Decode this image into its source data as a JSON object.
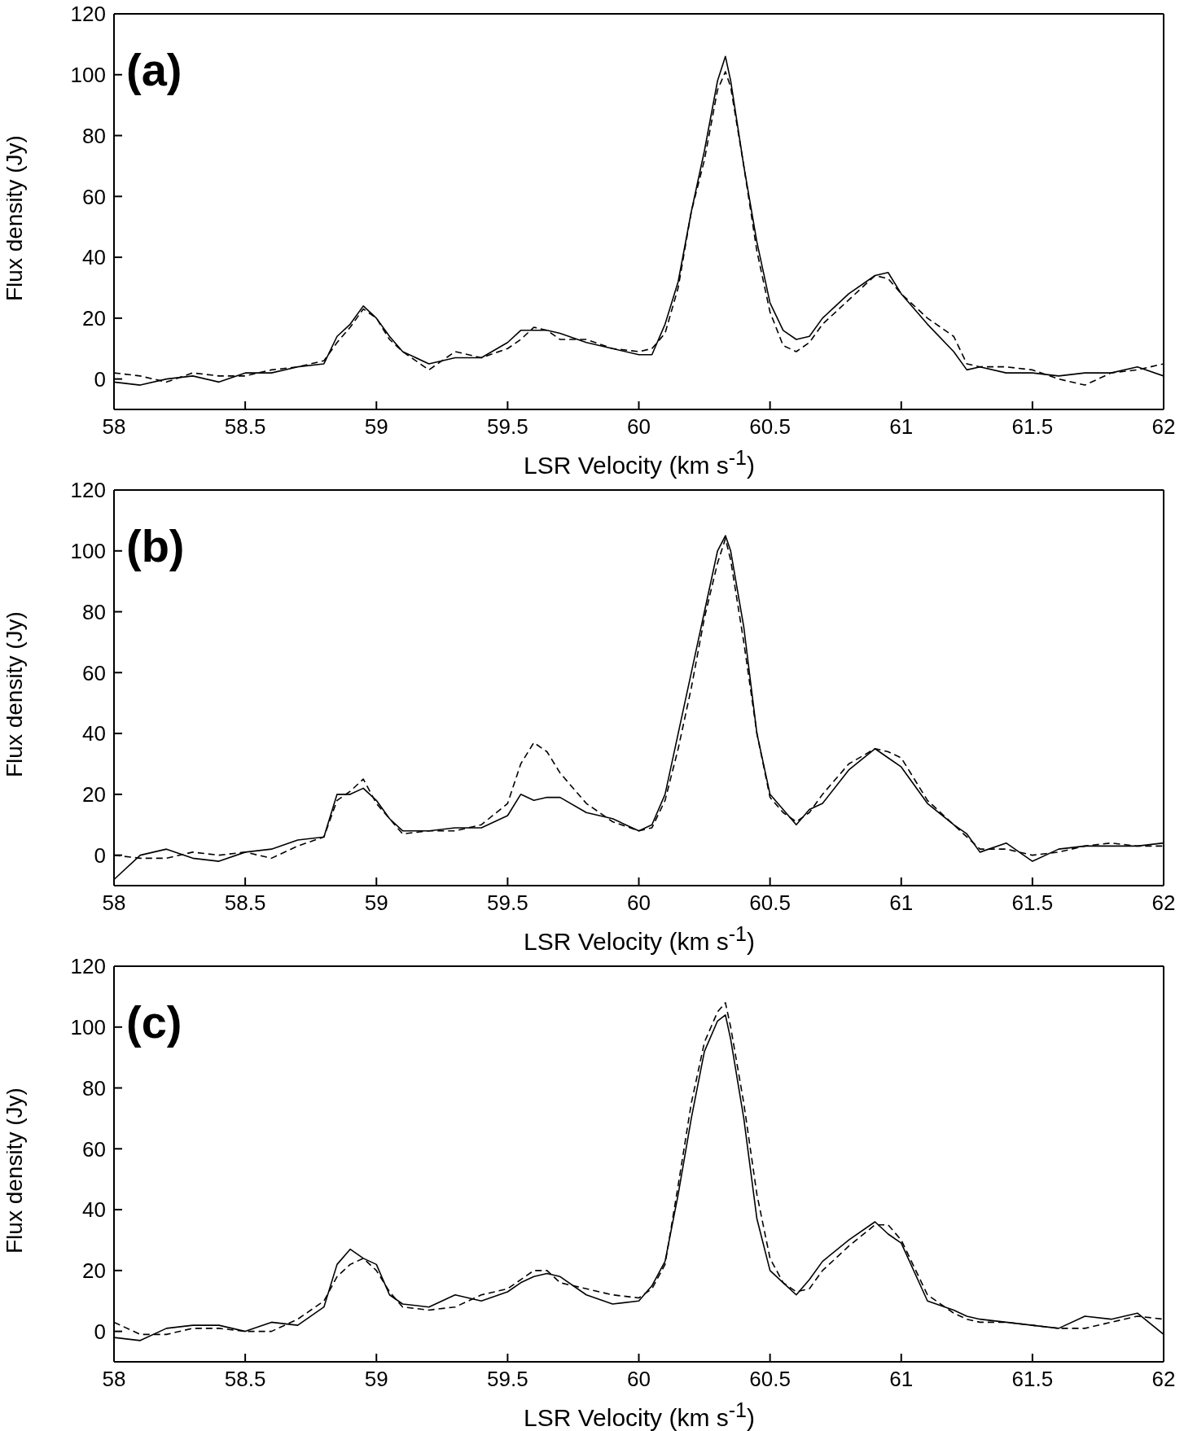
{
  "chart_data": [
    {
      "type": "line",
      "annotations": [
        "(a)"
      ],
      "xlabel": "LSR Velocity (km s$^{-1}$)",
      "ylabel": "Flux density (Jy)",
      "xlim": [
        58,
        62
      ],
      "xticks": [
        58,
        58.5,
        59,
        59.5,
        60,
        60.5,
        61,
        61.5,
        62
      ],
      "ylim": [
        -10,
        120
      ],
      "yticks": [
        0,
        20,
        40,
        60,
        80,
        100,
        120
      ],
      "x": [
        58,
        58.1,
        58.2,
        58.3,
        58.4,
        58.5,
        58.6,
        58.7,
        58.8,
        58.85,
        58.9,
        58.95,
        59,
        59.05,
        59.1,
        59.2,
        59.3,
        59.4,
        59.5,
        59.55,
        59.6,
        59.65,
        59.7,
        59.8,
        59.9,
        60,
        60.05,
        60.1,
        60.15,
        60.2,
        60.25,
        60.3,
        60.33,
        60.35,
        60.4,
        60.45,
        60.5,
        60.55,
        60.6,
        60.65,
        60.7,
        60.8,
        60.9,
        60.95,
        61,
        61.1,
        61.2,
        61.25,
        61.3,
        61.4,
        61.5,
        61.6,
        61.7,
        61.8,
        61.9,
        62
      ],
      "series": [
        {
          "color": "#000000",
          "line_style": "solid",
          "values": [
            -1,
            -2,
            0,
            1,
            -1,
            2,
            2,
            4,
            5,
            14,
            18,
            24,
            20,
            14,
            9,
            5,
            7,
            7,
            12,
            16,
            16,
            16,
            15,
            12,
            10,
            8,
            8,
            18,
            32,
            55,
            75,
            98,
            106,
            98,
            70,
            45,
            25,
            16,
            13,
            14,
            20,
            28,
            34,
            35,
            28,
            18,
            9,
            3,
            4,
            2,
            2,
            1,
            2,
            2,
            4,
            1
          ]
        },
        {
          "color": "#000000",
          "line_style": "dashed",
          "values": [
            2,
            1,
            -1,
            2,
            1,
            1,
            3,
            4,
            6,
            12,
            17,
            23,
            20,
            13,
            9,
            3,
            9,
            7,
            10,
            13,
            17,
            16,
            13,
            13,
            10,
            9,
            10,
            15,
            30,
            55,
            72,
            95,
            101,
            96,
            70,
            42,
            22,
            11,
            9,
            12,
            18,
            26,
            34,
            33,
            28,
            20,
            14,
            5,
            4,
            4,
            3,
            0,
            -2,
            2,
            3,
            5
          ]
        }
      ]
    },
    {
      "type": "line",
      "annotations": [
        "(b)"
      ],
      "xlabel": "LSR Velocity (km s$^{-1}$)",
      "ylabel": "Flux density (Jy)",
      "xlim": [
        58,
        62
      ],
      "xticks": [
        58,
        58.5,
        59,
        59.5,
        60,
        60.5,
        61,
        61.5,
        62
      ],
      "ylim": [
        -10,
        120
      ],
      "yticks": [
        0,
        20,
        40,
        60,
        80,
        100,
        120
      ],
      "x": [
        58,
        58.1,
        58.2,
        58.3,
        58.4,
        58.5,
        58.6,
        58.7,
        58.8,
        58.85,
        58.9,
        58.95,
        59,
        59.05,
        59.1,
        59.2,
        59.3,
        59.4,
        59.5,
        59.55,
        59.6,
        59.65,
        59.7,
        59.8,
        59.9,
        60,
        60.05,
        60.1,
        60.15,
        60.2,
        60.25,
        60.3,
        60.33,
        60.35,
        60.4,
        60.45,
        60.5,
        60.55,
        60.6,
        60.65,
        60.7,
        60.8,
        60.9,
        60.95,
        61,
        61.1,
        61.2,
        61.25,
        61.3,
        61.4,
        61.5,
        61.6,
        61.7,
        61.8,
        61.9,
        62
      ],
      "series": [
        {
          "color": "#000000",
          "line_style": "solid",
          "values": [
            -8,
            0,
            2,
            -1,
            -2,
            1,
            2,
            5,
            6,
            20,
            20,
            22,
            18,
            12,
            8,
            8,
            9,
            9,
            13,
            20,
            18,
            19,
            19,
            14,
            12,
            8,
            10,
            20,
            40,
            60,
            80,
            100,
            105,
            100,
            75,
            40,
            20,
            15,
            10,
            15,
            17,
            28,
            35,
            32,
            29,
            17,
            10,
            7,
            1,
            4,
            -2,
            2,
            3,
            3,
            3,
            4
          ]
        },
        {
          "color": "#000000",
          "line_style": "dashed",
          "values": [
            0,
            -1,
            -1,
            1,
            0,
            1,
            -1,
            3,
            6,
            18,
            21,
            25,
            17,
            12,
            7,
            8,
            8,
            10,
            17,
            30,
            37,
            34,
            27,
            17,
            11,
            8,
            9,
            18,
            35,
            55,
            78,
            96,
            104,
            97,
            70,
            40,
            19,
            14,
            11,
            14,
            20,
            30,
            35,
            34,
            32,
            18,
            10,
            6,
            2,
            2,
            0,
            1,
            3,
            4,
            3,
            3
          ]
        }
      ]
    },
    {
      "type": "line",
      "annotations": [
        "(c)"
      ],
      "xlabel": "LSR Velocity (km s$^{-1}$)",
      "ylabel": "Flux density (Jy)",
      "xlim": [
        58,
        62
      ],
      "xticks": [
        58,
        58.5,
        59,
        59.5,
        60,
        60.5,
        61,
        61.5,
        62
      ],
      "ylim": [
        -10,
        120
      ],
      "yticks": [
        0,
        20,
        40,
        60,
        80,
        100,
        120
      ],
      "x": [
        58,
        58.1,
        58.2,
        58.3,
        58.4,
        58.5,
        58.6,
        58.7,
        58.8,
        58.85,
        58.9,
        58.95,
        59,
        59.05,
        59.1,
        59.2,
        59.3,
        59.4,
        59.5,
        59.55,
        59.6,
        59.65,
        59.7,
        59.8,
        59.9,
        60,
        60.05,
        60.1,
        60.15,
        60.2,
        60.25,
        60.3,
        60.33,
        60.35,
        60.4,
        60.45,
        60.5,
        60.55,
        60.6,
        60.65,
        60.7,
        60.8,
        60.9,
        60.95,
        61,
        61.1,
        61.2,
        61.25,
        61.3,
        61.4,
        61.5,
        61.6,
        61.7,
        61.8,
        61.9,
        62
      ],
      "series": [
        {
          "color": "#000000",
          "line_style": "solid",
          "values": [
            -2,
            -3,
            1,
            2,
            2,
            0,
            3,
            2,
            8,
            22,
            27,
            24,
            22,
            12,
            9,
            8,
            12,
            10,
            13,
            16,
            18,
            19,
            18,
            12,
            9,
            10,
            15,
            23,
            45,
            70,
            92,
            102,
            104,
            96,
            70,
            37,
            20,
            16,
            12,
            17,
            23,
            30,
            36,
            32,
            29,
            10,
            7,
            5,
            4,
            3,
            2,
            1,
            5,
            4,
            6,
            -1
          ]
        },
        {
          "color": "#000000",
          "line_style": "dashed",
          "values": [
            3,
            -1,
            -1,
            1,
            1,
            0,
            0,
            4,
            10,
            18,
            22,
            24,
            20,
            13,
            8,
            7,
            8,
            12,
            14,
            17,
            20,
            20,
            16,
            14,
            12,
            11,
            14,
            22,
            48,
            75,
            95,
            105,
            108,
            100,
            75,
            45,
            24,
            16,
            13,
            14,
            20,
            28,
            35,
            35,
            30,
            12,
            6,
            4,
            3,
            3,
            2,
            1,
            1,
            3,
            5,
            4
          ]
        }
      ]
    }
  ]
}
